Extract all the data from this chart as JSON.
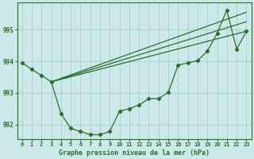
{
  "background_color": "#cce8e8",
  "line_color": "#2d6e2d",
  "grid_color": "#aacfcf",
  "text_color": "#2d6e2d",
  "xlabel": "Graphe pression niveau de la mer (hPa)",
  "ylim": [
    991.55,
    995.85
  ],
  "xlim": [
    -0.5,
    23.5
  ],
  "yticks": [
    992,
    993,
    994,
    995
  ],
  "xticks": [
    0,
    1,
    2,
    3,
    4,
    5,
    6,
    7,
    8,
    9,
    10,
    11,
    12,
    13,
    14,
    15,
    16,
    17,
    18,
    19,
    20,
    21,
    22,
    23
  ],
  "series_main": {
    "x": [
      0,
      1,
      2,
      3,
      4,
      5,
      6,
      7,
      8,
      9,
      10,
      11,
      12,
      13,
      14,
      15,
      16,
      17,
      18,
      19,
      20,
      21,
      22,
      23
    ],
    "y": [
      993.95,
      993.75,
      993.55,
      993.35,
      992.35,
      991.88,
      991.78,
      991.68,
      991.68,
      991.78,
      992.42,
      992.5,
      992.62,
      992.82,
      992.82,
      993.02,
      993.88,
      993.95,
      994.02,
      994.32,
      994.88,
      995.62,
      994.38,
      994.95
    ]
  },
  "line1": {
    "x": [
      3,
      23
    ],
    "y": [
      993.35,
      994.95
    ]
  },
  "line2": {
    "x": [
      3,
      23
    ],
    "y": [
      993.35,
      995.25
    ]
  },
  "line3": {
    "x": [
      3,
      23
    ],
    "y": [
      993.35,
      995.55
    ]
  },
  "figsize": [
    3.2,
    2.0
  ],
  "dpi": 100
}
